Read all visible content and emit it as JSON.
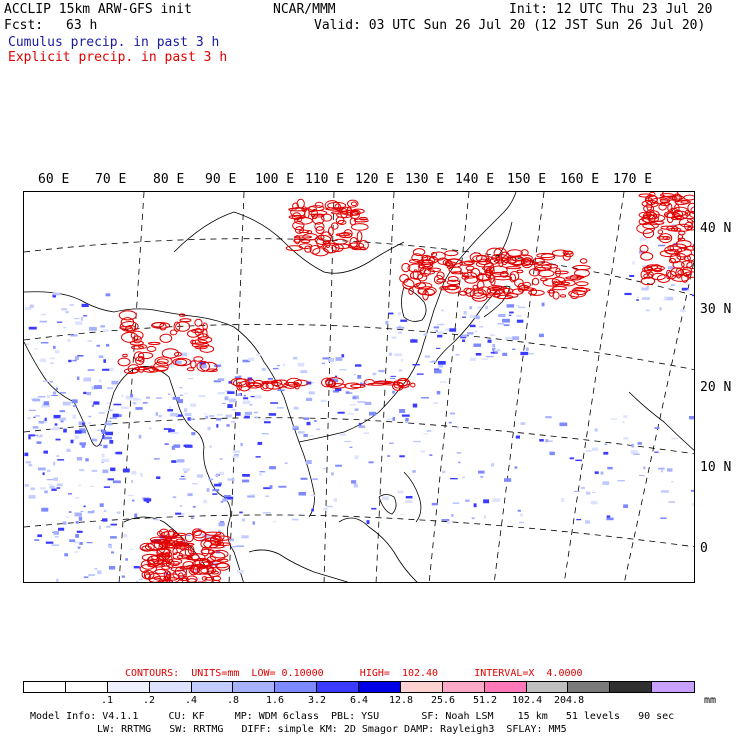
{
  "header": {
    "left_line1": "ACCLIP 15km ARW-GFS init",
    "left_line2_label": "Fcst:",
    "left_line2_value": "63 h",
    "center": "NCAR/MMM",
    "init": "Init: 12 UTC Thu 23 Jul 20",
    "valid": "Valid: 03 UTC Sun 26 Jul 20 (12 JST Sun 26 Jul 20)",
    "cumulus": "Cumulus precip. in past 3 h",
    "explicit": "Explicit precip. in past 3 h",
    "cumulus_color": "#1a1aa0",
    "explicit_color": "#e00000"
  },
  "map": {
    "lon_labels": [
      "60 E",
      "70 E",
      "80 E",
      "90 E",
      "100 E",
      "110 E",
      "120 E",
      "130 E",
      "140 E",
      "150 E",
      "160 E",
      "170 E"
    ],
    "lat_labels": [
      "40 N",
      "30 N",
      "20 N",
      "10 N",
      "0"
    ]
  },
  "legend": {
    "contours": "CONTOURS:  UNITS=mm  LOW= 0.10000      HIGH=  102.40      INTERVAL=X  4.0000",
    "ticks": [
      ".1",
      ".2",
      ".4",
      ".8",
      "1.6",
      "3.2",
      "6.4",
      "12.8",
      "25.6",
      "51.2",
      "102.4",
      "204.8"
    ],
    "unit": "mm",
    "colors": [
      "#ffffff",
      "#ffffff",
      "#eef0ff",
      "#dde3ff",
      "#c3ccff",
      "#a7b2ff",
      "#7d89ff",
      "#3b3bff",
      "#0000e6",
      "#ffd2d2",
      "#ffa8c8",
      "#ff78b8",
      "#bfbfbf",
      "#7a7a7a",
      "#303030",
      "#c8a0ff"
    ],
    "contour_color": "#e00000"
  },
  "footer": {
    "line1": "Model Info: V4.1.1     CU: KF     MP: WDM 6class  PBL: YSU       SF: Noah LSM    15 km   51 levels   90 sec",
    "line2": "LW: RRTMG   SW: RRTMG   DIFF: simple KM: 2D Smagor DAMP: Rayleigh3  SFLAY: MM5"
  }
}
